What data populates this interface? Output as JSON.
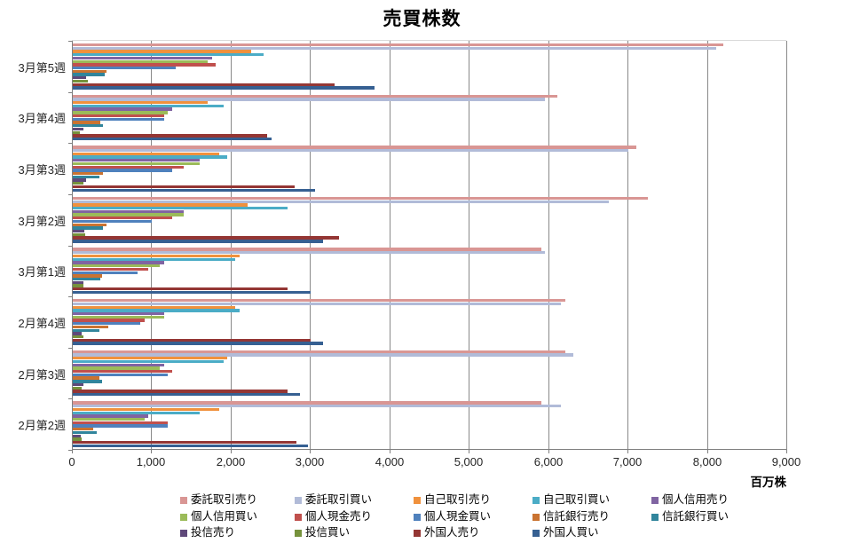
{
  "chart_data": {
    "type": "bar",
    "orientation": "horizontal",
    "title": "売買株数",
    "unit_label": "百万株",
    "categories": [
      "3月第5週",
      "3月第4週",
      "3月第3週",
      "3月第2週",
      "3月第1週",
      "2月第4週",
      "2月第3週",
      "2月第2週"
    ],
    "xlim": [
      0,
      9000
    ],
    "x_ticks": [
      "0",
      "1,000",
      "2,000",
      "3,000",
      "4,000",
      "5,000",
      "6,000",
      "7,000",
      "8,000",
      "9,000"
    ],
    "grid": true,
    "legend_position": "bottom",
    "series": [
      {
        "name": "委託取引売り",
        "color": "#d99694",
        "values": [
          8200,
          6100,
          7100,
          7250,
          5900,
          6200,
          6200,
          5900
        ]
      },
      {
        "name": "委託取引買い",
        "color": "#b1bbd8",
        "values": [
          8100,
          5950,
          7000,
          6750,
          5950,
          6150,
          6300,
          6150
        ]
      },
      {
        "name": "自己取引売り",
        "color": "#f0913d",
        "values": [
          2250,
          1700,
          1850,
          2200,
          2100,
          2050,
          1950,
          1850
        ]
      },
      {
        "name": "自己取引買い",
        "color": "#4bacc6",
        "values": [
          2400,
          1900,
          1950,
          2700,
          2050,
          2100,
          1900,
          1600
        ]
      },
      {
        "name": "個人信用売り",
        "color": "#8064a2",
        "values": [
          1750,
          1250,
          1600,
          1400,
          1150,
          1150,
          1150,
          950
        ]
      },
      {
        "name": "個人信用買い",
        "color": "#9bbb59",
        "values": [
          1700,
          1200,
          1600,
          1400,
          1100,
          1150,
          1100,
          900
        ]
      },
      {
        "name": "個人現金売り",
        "color": "#c0504d",
        "values": [
          1800,
          1150,
          1400,
          1250,
          950,
          900,
          1250,
          1200
        ]
      },
      {
        "name": "個人現金買い",
        "color": "#4f81bd",
        "values": [
          1300,
          1150,
          1250,
          1000,
          820,
          850,
          1200,
          1200
        ]
      },
      {
        "name": "信託銀行売り",
        "color": "#ca7331",
        "values": [
          430,
          350,
          380,
          430,
          370,
          450,
          330,
          260
        ]
      },
      {
        "name": "信託銀行買い",
        "color": "#31859c",
        "values": [
          400,
          380,
          330,
          380,
          350,
          340,
          370,
          300
        ]
      },
      {
        "name": "投信売り",
        "color": "#5f497a",
        "values": [
          170,
          130,
          170,
          140,
          130,
          110,
          130,
          100
        ]
      },
      {
        "name": "投信買い",
        "color": "#76923c",
        "values": [
          190,
          90,
          130,
          160,
          130,
          130,
          110,
          110
        ]
      },
      {
        "name": "外国人売り",
        "color": "#943634",
        "values": [
          3300,
          2450,
          2800,
          3350,
          2700,
          3000,
          2700,
          2820
        ]
      },
      {
        "name": "外国人買い",
        "color": "#366092",
        "values": [
          3800,
          2500,
          3050,
          3150,
          3000,
          3150,
          2860,
          2960
        ]
      }
    ]
  }
}
